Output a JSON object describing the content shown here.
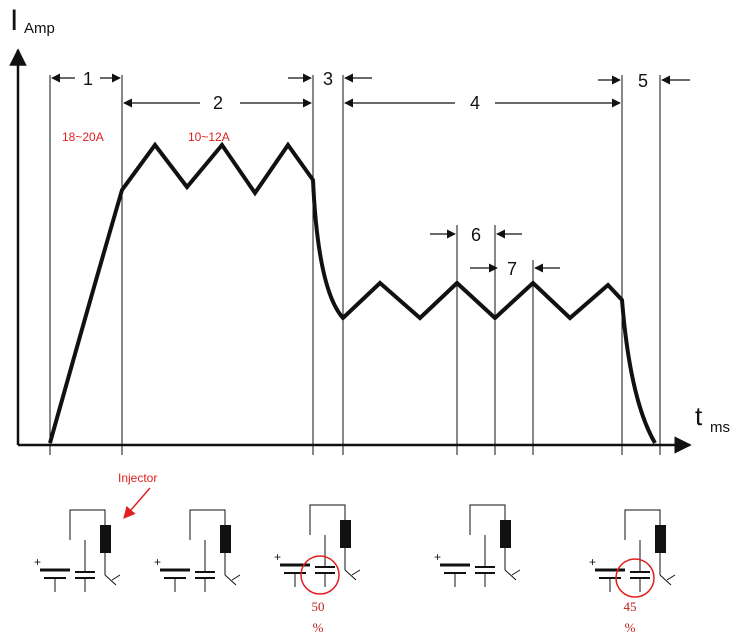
{
  "axes": {
    "y_label": "I",
    "y_sub": "Amp",
    "x_label": "t",
    "x_sub": "ms"
  },
  "intervals": [
    "1",
    "2",
    "3",
    "4",
    "5",
    "6",
    "7"
  ],
  "currents": [
    "18~20A",
    "10~12A"
  ],
  "injector": "Injector",
  "duty_notes": [
    {
      "value": "50",
      "unit": "%"
    },
    {
      "value": "45",
      "unit": "%"
    }
  ]
}
